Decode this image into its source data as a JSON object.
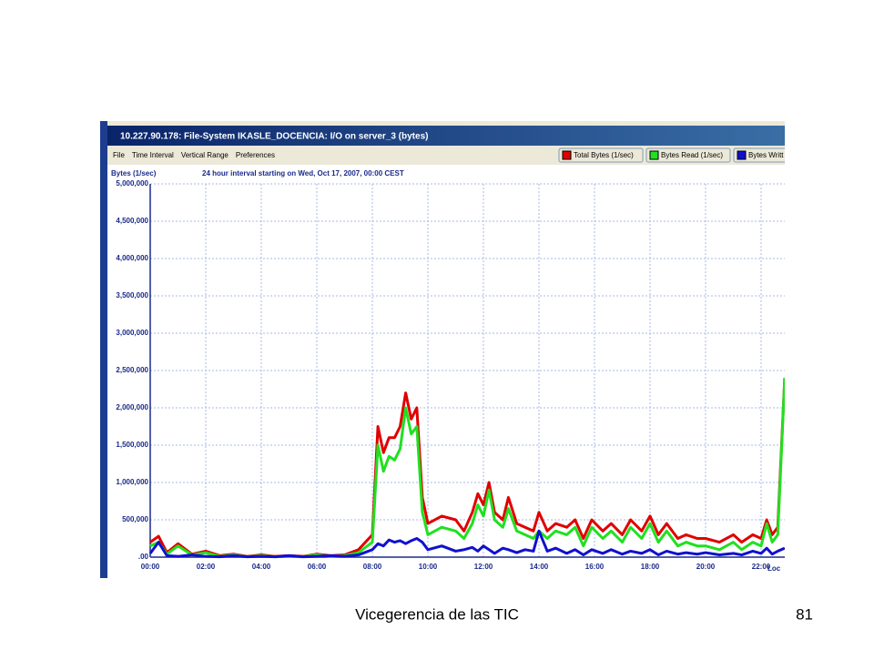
{
  "window": {
    "title": "10.227.90.178: File-System IKASLE_DOCENCIA: I/O on server_3 (bytes)",
    "menu": [
      "File",
      "Time Interval",
      "Vertical Range",
      "Preferences"
    ],
    "status": "Loc"
  },
  "footer": {
    "text": "Vicegerencia de las TIC",
    "page": "81"
  },
  "chart_data": {
    "type": "line",
    "ylabel": "Bytes (1/sec)",
    "title": "24 hour interval starting on Wed, Oct 17, 2007, 00:00 CEST",
    "grid": true,
    "xlim": [
      0,
      24
    ],
    "xticks": [
      {
        "value": 0,
        "label": "00:00"
      },
      {
        "value": 2,
        "label": "02:00"
      },
      {
        "value": 4,
        "label": "04:00"
      },
      {
        "value": 6,
        "label": "06:00"
      },
      {
        "value": 8,
        "label": "08:00"
      },
      {
        "value": 10,
        "label": "10:00"
      },
      {
        "value": 12,
        "label": "12:00"
      },
      {
        "value": 14,
        "label": "14:00"
      },
      {
        "value": 16,
        "label": "16:00"
      },
      {
        "value": 18,
        "label": "18:00"
      },
      {
        "value": 20,
        "label": "20:00"
      },
      {
        "value": 22,
        "label": "22:00"
      }
    ],
    "ylim": [
      0,
      5000000
    ],
    "yticks": [
      {
        "value": 0,
        "label": ".00"
      },
      {
        "value": 500000,
        "label": "500,000"
      },
      {
        "value": 1000000,
        "label": "1,000,000"
      },
      {
        "value": 1500000,
        "label": "1,500,000"
      },
      {
        "value": 2000000,
        "label": "2,000,000"
      },
      {
        "value": 2500000,
        "label": "2,500,000"
      },
      {
        "value": 3000000,
        "label": "3,000,000"
      },
      {
        "value": 3500000,
        "label": "3,500,000"
      },
      {
        "value": 4000000,
        "label": "4,000,000"
      },
      {
        "value": 4500000,
        "label": "4,500,000"
      },
      {
        "value": 5000000,
        "label": "5,000,000"
      }
    ],
    "x": [
      0,
      0.3,
      0.6,
      1,
      1.5,
      2,
      2.5,
      3,
      3.5,
      4,
      4.5,
      5,
      5.5,
      6,
      6.5,
      7,
      7.5,
      8.0,
      8.2,
      8.4,
      8.6,
      8.8,
      9.0,
      9.2,
      9.4,
      9.6,
      9.8,
      10.0,
      10.5,
      11,
      11.3,
      11.6,
      11.8,
      12.0,
      12.2,
      12.4,
      12.7,
      12.9,
      13.2,
      13.5,
      13.8,
      14.0,
      14.3,
      14.6,
      15,
      15.3,
      15.6,
      15.9,
      16.3,
      16.6,
      17,
      17.3,
      17.7,
      18,
      18.3,
      18.6,
      19,
      19.3,
      19.7,
      20,
      20.5,
      21,
      21.3,
      21.7,
      22,
      22.2,
      22.4,
      22.6,
      22.85
    ],
    "series": [
      {
        "name": "Total Bytes (1/sec)",
        "color": "#e00000",
        "values": [
          200000,
          280000,
          60000,
          180000,
          40000,
          80000,
          20000,
          40000,
          10000,
          30000,
          10000,
          20000,
          10000,
          40000,
          20000,
          30000,
          100000,
          300000,
          1750000,
          1400000,
          1600000,
          1600000,
          1750000,
          2200000,
          1850000,
          2000000,
          800000,
          450000,
          550000,
          500000,
          350000,
          600000,
          850000,
          700000,
          1000000,
          600000,
          500000,
          800000,
          450000,
          400000,
          350000,
          600000,
          350000,
          450000,
          400000,
          500000,
          250000,
          500000,
          350000,
          450000,
          300000,
          500000,
          350000,
          550000,
          300000,
          450000,
          250000,
          300000,
          250000,
          250000,
          200000,
          300000,
          200000,
          300000,
          250000,
          500000,
          300000,
          400000,
          2400000
        ]
      },
      {
        "name": "Bytes Read (1/sec)",
        "color": "#20e020",
        "values": [
          150000,
          200000,
          40000,
          150000,
          30000,
          60000,
          10000,
          30000,
          5000,
          20000,
          5000,
          10000,
          5000,
          30000,
          10000,
          20000,
          60000,
          200000,
          1500000,
          1150000,
          1350000,
          1300000,
          1450000,
          2000000,
          1650000,
          1750000,
          600000,
          300000,
          400000,
          350000,
          250000,
          450000,
          700000,
          550000,
          900000,
          500000,
          400000,
          650000,
          350000,
          300000,
          250000,
          350000,
          250000,
          350000,
          300000,
          400000,
          150000,
          400000,
          250000,
          350000,
          200000,
          400000,
          250000,
          450000,
          200000,
          350000,
          150000,
          200000,
          150000,
          150000,
          100000,
          200000,
          100000,
          200000,
          150000,
          450000,
          200000,
          300000,
          2400000
        ]
      },
      {
        "name": "Bytes Writt",
        "color": "#1010d0",
        "values": [
          50000,
          200000,
          20000,
          10000,
          30000,
          10000,
          5000,
          20000,
          5000,
          10000,
          5000,
          20000,
          5000,
          10000,
          20000,
          10000,
          30000,
          100000,
          180000,
          150000,
          230000,
          200000,
          220000,
          180000,
          220000,
          250000,
          200000,
          100000,
          150000,
          80000,
          100000,
          130000,
          80000,
          150000,
          100000,
          50000,
          120000,
          100000,
          60000,
          100000,
          80000,
          350000,
          80000,
          120000,
          50000,
          100000,
          30000,
          100000,
          50000,
          100000,
          40000,
          80000,
          50000,
          100000,
          30000,
          80000,
          40000,
          60000,
          40000,
          60000,
          30000,
          50000,
          30000,
          80000,
          50000,
          120000,
          40000,
          80000,
          120000
        ]
      }
    ]
  }
}
